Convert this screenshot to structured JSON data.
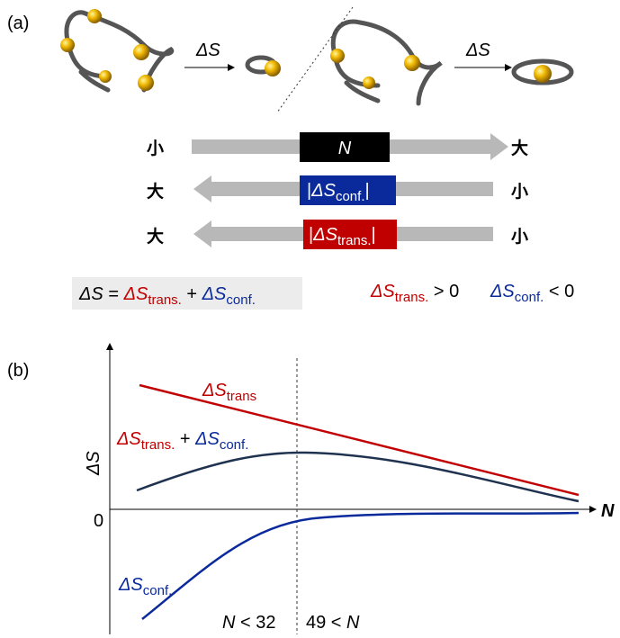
{
  "panel_a": {
    "label": "(a)",
    "arrow_labels": [
      "ΔS",
      "ΔS"
    ],
    "scales": [
      {
        "left": "小",
        "box": {
          "symbol": "N"
        },
        "right": "大"
      },
      {
        "left": "大",
        "box": {
          "open": "|",
          "symbol": "ΔS",
          "sub": "conf.",
          "close": "|"
        },
        "right": "小"
      },
      {
        "left": "大",
        "box": {
          "open": "|",
          "symbol": "ΔS",
          "sub": "trans.",
          "close": "|"
        },
        "right": "小"
      }
    ],
    "equation": {
      "lhs": "ΔS",
      "eq": " = ",
      "t1": {
        "symbol": "ΔS",
        "sub": "trans."
      },
      "plus": " + ",
      "t2": {
        "symbol": "ΔS",
        "sub": "conf."
      }
    },
    "signs": [
      {
        "symbol": "ΔS",
        "sub": "trans.",
        "rel": " > 0"
      },
      {
        "symbol": "ΔS",
        "sub": "conf.",
        "rel": " < 0"
      }
    ]
  },
  "panel_b": {
    "label": "(b)",
    "y_axis_label": "ΔS",
    "zero_label": "0",
    "x_axis_label": "N",
    "curve_labels": {
      "trans": {
        "symbol": "ΔS",
        "sub": "trans"
      },
      "sum": {
        "t1": {
          "symbol": "ΔS",
          "sub": "trans."
        },
        "plus": " + ",
        "t2": {
          "symbol": "ΔS",
          "sub": "conf."
        }
      },
      "conf": {
        "symbol": "ΔS",
        "sub": "conf."
      }
    },
    "regions": [
      {
        "var": "N",
        "rest": " < 32"
      },
      {
        "rest": "49 < ",
        "var": "N"
      }
    ]
  }
}
